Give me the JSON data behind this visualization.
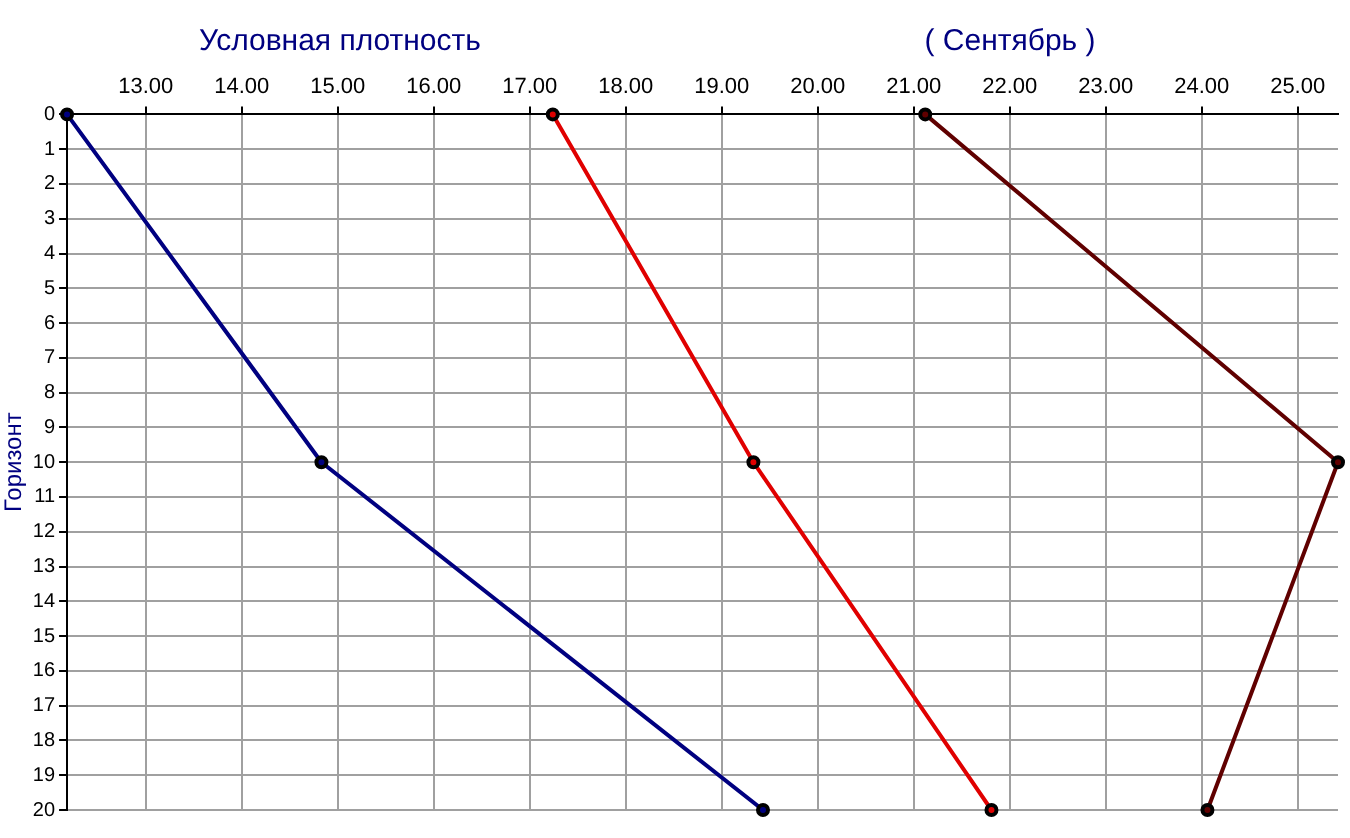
{
  "chart_data": {
    "type": "line",
    "title": "Условная плотность",
    "subtitle": "( Сентябрь )",
    "ylabel": "Горизонт",
    "series": [
      {
        "color": "#000080",
        "x": [
          12.18,
          14.83,
          19.43
        ],
        "values": [
          0,
          10,
          20
        ]
      },
      {
        "color": "#e00000",
        "x": [
          17.24,
          19.33,
          21.81
        ],
        "values": [
          0,
          10,
          20
        ]
      },
      {
        "color": "#600000",
        "x": [
          21.12,
          25.42,
          24.06
        ],
        "values": [
          0,
          10,
          20
        ]
      }
    ],
    "xlim": [
      12.18,
      25.42
    ],
    "xticks": [
      {
        "value": 13,
        "label": "13.00"
      },
      {
        "value": 14,
        "label": "14.00"
      },
      {
        "value": 15,
        "label": "15.00"
      },
      {
        "value": 16,
        "label": "16.00"
      },
      {
        "value": 17,
        "label": "17.00"
      },
      {
        "value": 18,
        "label": "18.00"
      },
      {
        "value": 19,
        "label": "19.00"
      },
      {
        "value": 20,
        "label": "20.00"
      },
      {
        "value": 21,
        "label": "21.00"
      },
      {
        "value": 22,
        "label": "22.00"
      },
      {
        "value": 23,
        "label": "23.00"
      },
      {
        "value": 24,
        "label": "24.00"
      },
      {
        "value": 25,
        "label": "25.00"
      }
    ],
    "ylim": [
      20,
      0
    ],
    "yticks": [
      0,
      1,
      2,
      3,
      4,
      5,
      6,
      7,
      8,
      9,
      10,
      11,
      12,
      13,
      14,
      15,
      16,
      17,
      18,
      19,
      20
    ],
    "grid": true,
    "marker": "circle",
    "line_style": "solid",
    "legend": false
  }
}
